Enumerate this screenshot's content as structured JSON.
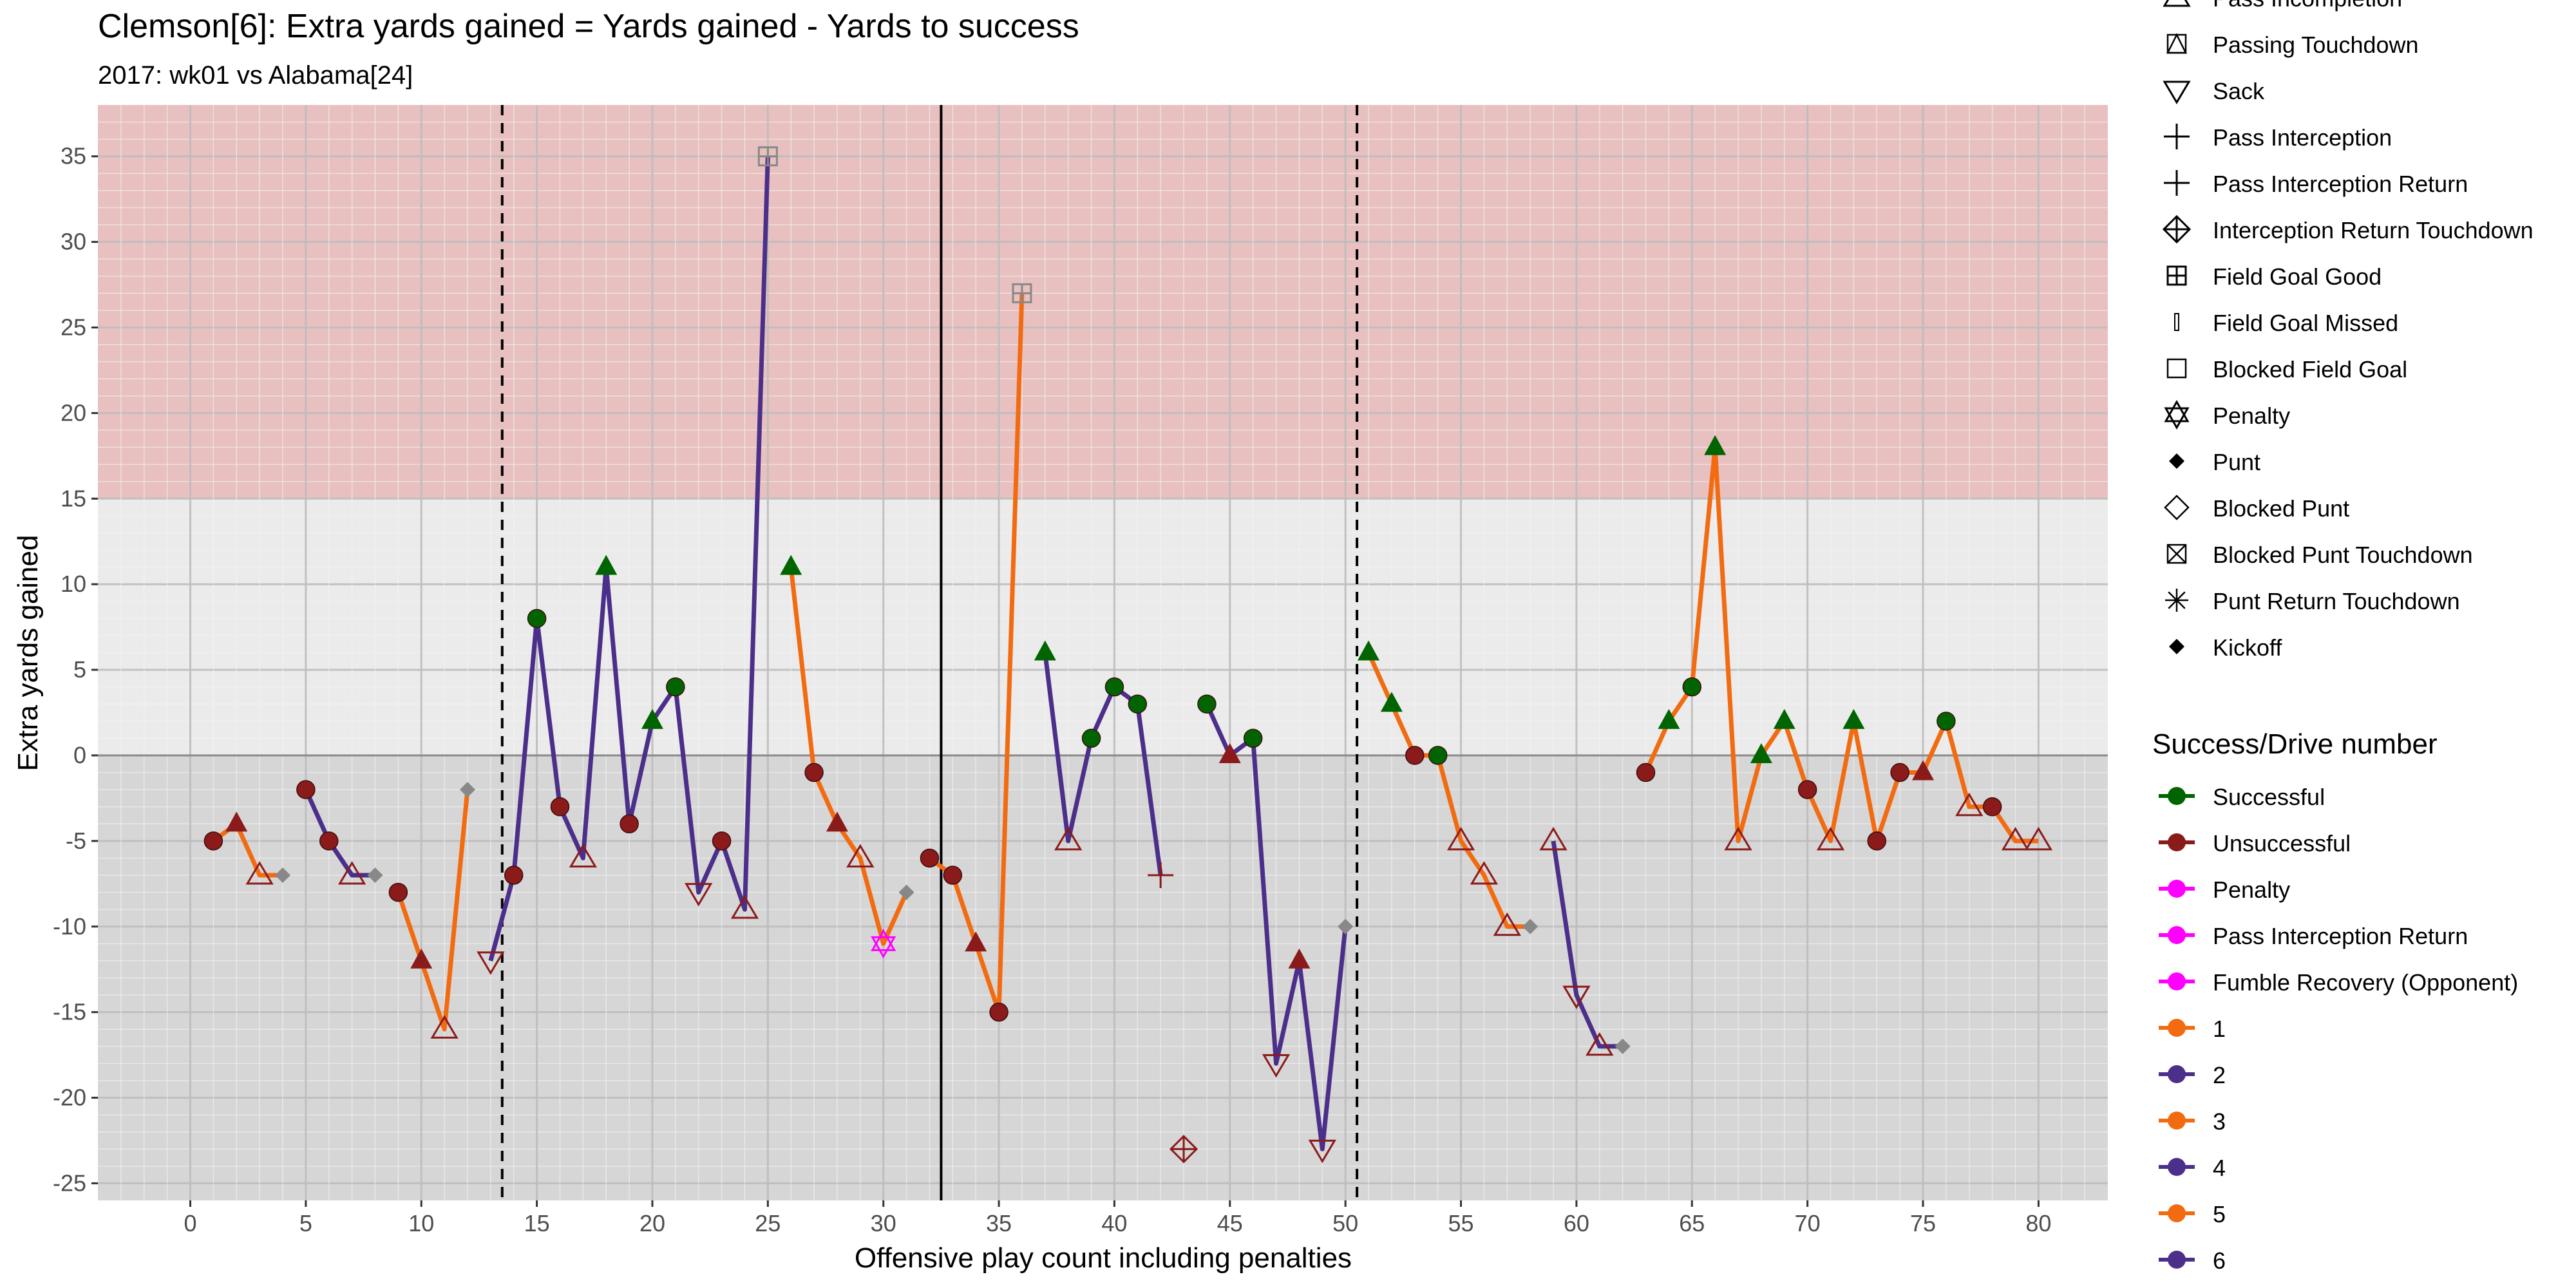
{
  "chart_data": {
    "type": "line",
    "title": "Clemson[6]: Extra yards gained = Yards gained - Yards to success",
    "subtitle": "2017: wk01 vs Alabama[24]",
    "xlabel": "Offensive play count including penalties",
    "ylabel": "Extra yards gained",
    "xlim": [
      -4,
      83
    ],
    "ylim": [
      -26,
      38
    ],
    "x_ticks": [
      0,
      5,
      10,
      15,
      20,
      25,
      30,
      35,
      40,
      45,
      50,
      55,
      60,
      65,
      70,
      75,
      80
    ],
    "y_ticks": [
      -25,
      -20,
      -15,
      -10,
      -5,
      0,
      5,
      10,
      15,
      20,
      25,
      30,
      35
    ],
    "shaded_band": {
      "from": 15,
      "to": 38,
      "color": "#e8c0c0"
    },
    "below_zero_band": {
      "from": -26,
      "to": 0,
      "color": "#d6d6d6"
    },
    "reference_lines": {
      "solid_x": 32.5,
      "dashed_x": [
        13.5,
        50.5
      ],
      "zero_y": 0
    },
    "colors": {
      "successful": "#006400",
      "unsuccessful": "#8b1a1a",
      "penalty": "#ff00ff",
      "gray_marker": "#888888",
      "drive_odd": "#f26b10",
      "drive_even": "#4b2f8a"
    },
    "legend_shapes": {
      "title": "",
      "items": [
        {
          "label": "Pass Incompletion",
          "shape": "triangle-up-open"
        },
        {
          "label": "Passing Touchdown",
          "shape": "triangle-square"
        },
        {
          "label": "Sack",
          "shape": "triangle-down-open"
        },
        {
          "label": "Pass Interception",
          "shape": "plus"
        },
        {
          "label": "Pass Interception Return",
          "shape": "plus"
        },
        {
          "label": "Interception Return Touchdown",
          "shape": "circle-plus"
        },
        {
          "label": "Field Goal Good",
          "shape": "square-plus"
        },
        {
          "label": "Field Goal Missed",
          "shape": "thin-rect"
        },
        {
          "label": "Blocked Field Goal",
          "shape": "square-open"
        },
        {
          "label": "Penalty",
          "shape": "star-of-david"
        },
        {
          "label": "Punt",
          "shape": "diamond-filled"
        },
        {
          "label": "Blocked Punt",
          "shape": "diamond-open"
        },
        {
          "label": "Blocked Punt Touchdown",
          "shape": "square-x"
        },
        {
          "label": "Punt Return Touchdown",
          "shape": "asterisk"
        },
        {
          "label": "Kickoff",
          "shape": "diamond-filled"
        }
      ]
    },
    "legend_color": {
      "title": "Success/Drive number",
      "items": [
        {
          "label": "Successful",
          "color": "#006400"
        },
        {
          "label": "Unsuccessful",
          "color": "#8b1a1a"
        },
        {
          "label": "Penalty",
          "color": "#ff00ff"
        },
        {
          "label": "Pass Interception Return",
          "color": "#ff00ff"
        },
        {
          "label": "Fumble Recovery (Opponent)",
          "color": "#ff00ff"
        },
        {
          "label": "1",
          "color": "#f26b10"
        },
        {
          "label": "2",
          "color": "#4b2f8a"
        },
        {
          "label": "3",
          "color": "#f26b10"
        },
        {
          "label": "4",
          "color": "#4b2f8a"
        },
        {
          "label": "5",
          "color": "#f26b10"
        },
        {
          "label": "6",
          "color": "#4b2f8a"
        }
      ]
    },
    "drives": [
      {
        "drive": 1,
        "points": [
          {
            "x": 1,
            "y": -5,
            "m": "circle",
            "c": "unsuccessful"
          },
          {
            "x": 2,
            "y": -4,
            "m": "triangle",
            "c": "unsuccessful"
          },
          {
            "x": 3,
            "y": -7,
            "m": "tri-up-open",
            "c": "unsuccessful"
          },
          {
            "x": 4,
            "y": -7,
            "m": "diamond",
            "c": "gray"
          }
        ]
      },
      {
        "drive": 2,
        "points": [
          {
            "x": 5,
            "y": -2,
            "m": "circle",
            "c": "unsuccessful"
          },
          {
            "x": 6,
            "y": -5,
            "m": "circle",
            "c": "unsuccessful"
          },
          {
            "x": 7,
            "y": -7,
            "m": "tri-up-open",
            "c": "unsuccessful"
          },
          {
            "x": 8,
            "y": -7,
            "m": "diamond",
            "c": "gray"
          }
        ]
      },
      {
        "drive": 3,
        "points": [
          {
            "x": 9,
            "y": -8,
            "m": "circle",
            "c": "unsuccessful"
          },
          {
            "x": 10,
            "y": -12,
            "m": "triangle",
            "c": "unsuccessful"
          },
          {
            "x": 11,
            "y": -16,
            "m": "tri-up-open",
            "c": "unsuccessful"
          },
          {
            "x": 12,
            "y": -2,
            "m": "diamond",
            "c": "gray"
          }
        ]
      },
      {
        "drive": 4,
        "points": [
          {
            "x": 13,
            "y": -12,
            "m": "tri-down-open",
            "c": "unsuccessful"
          },
          {
            "x": 14,
            "y": -7,
            "m": "circle",
            "c": "unsuccessful"
          },
          {
            "x": 15,
            "y": 8,
            "m": "circle",
            "c": "successful"
          },
          {
            "x": 16,
            "y": -3,
            "m": "circle",
            "c": "unsuccessful"
          },
          {
            "x": 17,
            "y": -6,
            "m": "tri-up-open",
            "c": "unsuccessful"
          },
          {
            "x": 18,
            "y": 11,
            "m": "triangle",
            "c": "successful"
          },
          {
            "x": 19,
            "y": -4,
            "m": "circle",
            "c": "unsuccessful"
          },
          {
            "x": 20,
            "y": 2,
            "m": "triangle",
            "c": "successful"
          },
          {
            "x": 21,
            "y": 4,
            "m": "circle",
            "c": "successful"
          },
          {
            "x": 22,
            "y": -8,
            "m": "tri-down-open",
            "c": "unsuccessful"
          },
          {
            "x": 23,
            "y": -5,
            "m": "circle",
            "c": "unsuccessful"
          },
          {
            "x": 24,
            "y": -9,
            "m": "tri-up-open",
            "c": "unsuccessful"
          },
          {
            "x": 25,
            "y": 35,
            "m": "square-plus",
            "c": "gray"
          }
        ]
      },
      {
        "drive": 5,
        "points": [
          {
            "x": 26,
            "y": 11,
            "m": "triangle",
            "c": "successful"
          },
          {
            "x": 27,
            "y": -1,
            "m": "circle",
            "c": "unsuccessful"
          },
          {
            "x": 28,
            "y": -4,
            "m": "triangle",
            "c": "unsuccessful"
          },
          {
            "x": 29,
            "y": -6,
            "m": "tri-up-open",
            "c": "unsuccessful"
          },
          {
            "x": 30,
            "y": -11,
            "m": "star",
            "c": "penalty"
          },
          {
            "x": 31,
            "y": -8,
            "m": "diamond",
            "c": "gray"
          }
        ]
      },
      {
        "drive": 7,
        "points": [
          {
            "x": 32,
            "y": -6,
            "m": "circle",
            "c": "unsuccessful"
          },
          {
            "x": 33,
            "y": -7,
            "m": "circle",
            "c": "unsuccessful"
          },
          {
            "x": 34,
            "y": -11,
            "m": "triangle",
            "c": "unsuccessful"
          },
          {
            "x": 35,
            "y": -15,
            "m": "circle",
            "c": "unsuccessful"
          },
          {
            "x": 36,
            "y": 27,
            "m": "square-plus",
            "c": "gray"
          }
        ]
      },
      {
        "drive": 8,
        "points": [
          {
            "x": 37,
            "y": 6,
            "m": "triangle",
            "c": "successful"
          },
          {
            "x": 38,
            "y": -5,
            "m": "tri-up-open",
            "c": "unsuccessful"
          },
          {
            "x": 39,
            "y": 1,
            "m": "circle",
            "c": "successful"
          },
          {
            "x": 40,
            "y": 4,
            "m": "circle",
            "c": "successful"
          },
          {
            "x": 41,
            "y": 3,
            "m": "circle",
            "c": "successful"
          },
          {
            "x": 42,
            "y": -7,
            "m": "plus",
            "c": "unsuccessful"
          }
        ]
      },
      {
        "drive": 9,
        "points": [
          {
            "x": 43,
            "y": -23,
            "m": "circle-plus",
            "c": "unsuccessful"
          }
        ]
      },
      {
        "drive": 10,
        "points": [
          {
            "x": 44,
            "y": 3,
            "m": "circle",
            "c": "successful"
          },
          {
            "x": 45,
            "y": 0,
            "m": "triangle",
            "c": "unsuccessful"
          },
          {
            "x": 46,
            "y": 1,
            "m": "circle",
            "c": "successful"
          },
          {
            "x": 47,
            "y": -18,
            "m": "tri-down-open",
            "c": "unsuccessful"
          },
          {
            "x": 48,
            "y": -12,
            "m": "triangle",
            "c": "unsuccessful"
          },
          {
            "x": 49,
            "y": -23,
            "m": "tri-down-open",
            "c": "unsuccessful"
          },
          {
            "x": 50,
            "y": -10,
            "m": "diamond",
            "c": "gray"
          }
        ]
      },
      {
        "drive": 11,
        "points": [
          {
            "x": 51,
            "y": 6,
            "m": "triangle",
            "c": "successful"
          },
          {
            "x": 52,
            "y": 3,
            "m": "triangle",
            "c": "successful"
          },
          {
            "x": 53,
            "y": 0,
            "m": "circle",
            "c": "unsuccessful"
          },
          {
            "x": 54,
            "y": 0,
            "m": "circle",
            "c": "successful"
          },
          {
            "x": 55,
            "y": -5,
            "m": "tri-up-open",
            "c": "unsuccessful"
          },
          {
            "x": 56,
            "y": -7,
            "m": "tri-up-open",
            "c": "unsuccessful"
          },
          {
            "x": 57,
            "y": -10,
            "m": "tri-up-open",
            "c": "unsuccessful"
          },
          {
            "x": 58,
            "y": -10,
            "m": "diamond",
            "c": "gray"
          }
        ]
      },
      {
        "drive": 12,
        "points": [
          {
            "x": 59,
            "y": -5,
            "m": "tri-up-open",
            "c": "unsuccessful"
          },
          {
            "x": 60,
            "y": -14,
            "m": "tri-down-open",
            "c": "unsuccessful"
          },
          {
            "x": 61,
            "y": -17,
            "m": "tri-up-open",
            "c": "unsuccessful"
          },
          {
            "x": 62,
            "y": -17,
            "m": "diamond",
            "c": "gray"
          }
        ]
      },
      {
        "drive": 13,
        "points": [
          {
            "x": 63,
            "y": -1,
            "m": "circle",
            "c": "unsuccessful"
          },
          {
            "x": 64,
            "y": 2,
            "m": "triangle",
            "c": "successful"
          },
          {
            "x": 65,
            "y": 4,
            "m": "circle",
            "c": "successful"
          },
          {
            "x": 66,
            "y": 18,
            "m": "triangle",
            "c": "successful"
          },
          {
            "x": 67,
            "y": -5,
            "m": "tri-up-open",
            "c": "unsuccessful"
          },
          {
            "x": 68,
            "y": 0,
            "m": "triangle",
            "c": "successful"
          },
          {
            "x": 69,
            "y": 2,
            "m": "triangle",
            "c": "successful"
          },
          {
            "x": 70,
            "y": -2,
            "m": "circle",
            "c": "unsuccessful"
          },
          {
            "x": 71,
            "y": -5,
            "m": "tri-up-open",
            "c": "unsuccessful"
          },
          {
            "x": 72,
            "y": 2,
            "m": "triangle",
            "c": "successful"
          },
          {
            "x": 73,
            "y": -5,
            "m": "circle",
            "c": "unsuccessful"
          },
          {
            "x": 74,
            "y": -1,
            "m": "circle",
            "c": "unsuccessful"
          },
          {
            "x": 75,
            "y": -1,
            "m": "triangle",
            "c": "unsuccessful"
          },
          {
            "x": 76,
            "y": 2,
            "m": "circle",
            "c": "successful"
          },
          {
            "x": 77,
            "y": -3,
            "m": "tri-up-open",
            "c": "unsuccessful"
          },
          {
            "x": 78,
            "y": -3,
            "m": "circle",
            "c": "unsuccessful"
          },
          {
            "x": 79,
            "y": -5,
            "m": "tri-up-open",
            "c": "unsuccessful"
          },
          {
            "x": 80,
            "y": -5,
            "m": "tri-up-open",
            "c": "unsuccessful"
          }
        ]
      }
    ]
  }
}
